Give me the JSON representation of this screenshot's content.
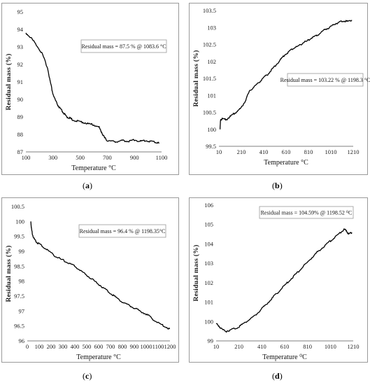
{
  "chart_data": [
    {
      "type": "line",
      "caption": "a",
      "xlabel": "Temperature °C",
      "ylabel": "Residual mass (%)",
      "annotation": "Residual mass = 87.5 % @ 1083.6 °C",
      "xlim": [
        100,
        1100
      ],
      "ylim": [
        87,
        95
      ],
      "xticks": [
        100,
        300,
        500,
        700,
        900,
        1100
      ],
      "yticks": [
        87,
        88,
        89,
        90,
        91,
        92,
        93,
        94,
        95
      ],
      "x": [
        100,
        140,
        180,
        220,
        260,
        280,
        300,
        320,
        340,
        360,
        380,
        400,
        420,
        440,
        480,
        520,
        560,
        600,
        640,
        660,
        680,
        700,
        740,
        780,
        820,
        860,
        900,
        940,
        980,
        1020,
        1060,
        1083.6
      ],
      "y": [
        93.8,
        93.5,
        93.1,
        92.6,
        91.8,
        91.0,
        90.3,
        89.9,
        89.6,
        89.4,
        89.2,
        89.0,
        88.95,
        88.85,
        88.75,
        88.7,
        88.6,
        88.55,
        88.4,
        88.1,
        87.8,
        87.65,
        87.6,
        87.6,
        87.65,
        87.6,
        87.7,
        87.6,
        87.65,
        87.6,
        87.55,
        87.5
      ]
    },
    {
      "type": "line",
      "caption": "b",
      "xlabel": "Temperature °C",
      "ylabel": "Residual mass (%)",
      "annotation": "Residual mass = 103.22 % @ 1198.3 °C",
      "xlim": [
        10,
        1210
      ],
      "ylim": [
        99.5,
        103.5
      ],
      "xticks": [
        10,
        210,
        410,
        610,
        810,
        1010,
        1210
      ],
      "yticks": [
        99.5,
        100,
        100.5,
        101,
        101.5,
        102,
        102.5,
        103,
        103.5
      ],
      "x": [
        20,
        25,
        40,
        80,
        120,
        160,
        200,
        240,
        280,
        320,
        360,
        400,
        440,
        480,
        520,
        560,
        600,
        640,
        680,
        720,
        760,
        800,
        840,
        880,
        920,
        960,
        1000,
        1040,
        1080,
        1120,
        1160,
        1198.3
      ],
      "y": [
        100.0,
        100.3,
        100.3,
        100.3,
        100.4,
        100.5,
        100.6,
        100.8,
        101.1,
        101.25,
        101.35,
        101.5,
        101.6,
        101.75,
        101.9,
        102.05,
        102.2,
        102.3,
        102.4,
        102.45,
        102.55,
        102.6,
        102.7,
        102.75,
        102.85,
        102.95,
        103.0,
        103.1,
        103.15,
        103.2,
        103.18,
        103.22
      ]
    },
    {
      "type": "line",
      "caption": "c",
      "xlabel": "Temperature °C",
      "ylabel": "Residual mass (%)",
      "annotation": "Residual mass = 96.4 % @ 1198.35°C",
      "xlim": [
        0,
        1200
      ],
      "ylim": [
        96,
        100.5
      ],
      "xticks": [
        0,
        100,
        200,
        300,
        400,
        500,
        600,
        700,
        800,
        900,
        1000,
        1100,
        1200
      ],
      "yticks": [
        96,
        96.5,
        97,
        97.5,
        98,
        98.5,
        99,
        99.5,
        100,
        100.5
      ],
      "x": [
        30,
        35,
        45,
        60,
        80,
        100,
        150,
        200,
        250,
        300,
        350,
        400,
        450,
        500,
        550,
        600,
        650,
        700,
        750,
        800,
        850,
        900,
        950,
        1000,
        1050,
        1100,
        1150,
        1198.35
      ],
      "y": [
        100.0,
        99.75,
        99.55,
        99.4,
        99.3,
        99.25,
        99.1,
        98.95,
        98.8,
        98.7,
        98.6,
        98.5,
        98.35,
        98.2,
        98.05,
        97.9,
        97.75,
        97.6,
        97.45,
        97.3,
        97.2,
        97.1,
        97.0,
        96.9,
        96.75,
        96.6,
        96.5,
        96.4
      ]
    },
    {
      "type": "line",
      "caption": "d",
      "xlabel": "Temperature ⁰C",
      "ylabel": "Residual mass (%)",
      "annotation": "Residual mass = 104.59% @ 1198.52 ⁰C",
      "xlim": [
        10,
        1210
      ],
      "ylim": [
        99,
        106
      ],
      "xticks": [
        10,
        210,
        410,
        610,
        810,
        1010,
        1210
      ],
      "yticks": [
        99,
        100,
        101,
        102,
        103,
        104,
        105,
        106
      ],
      "x": [
        10,
        30,
        60,
        100,
        150,
        200,
        250,
        300,
        350,
        400,
        450,
        500,
        550,
        600,
        650,
        700,
        750,
        800,
        850,
        900,
        950,
        1000,
        1050,
        1100,
        1130,
        1150,
        1170,
        1198.52
      ],
      "y": [
        99.9,
        99.8,
        99.6,
        99.5,
        99.6,
        99.7,
        99.9,
        100.1,
        100.3,
        100.6,
        100.9,
        101.2,
        101.5,
        101.8,
        102.1,
        102.4,
        102.7,
        103.0,
        103.3,
        103.6,
        103.85,
        104.1,
        104.35,
        104.6,
        104.75,
        104.7,
        104.5,
        104.59
      ]
    }
  ]
}
